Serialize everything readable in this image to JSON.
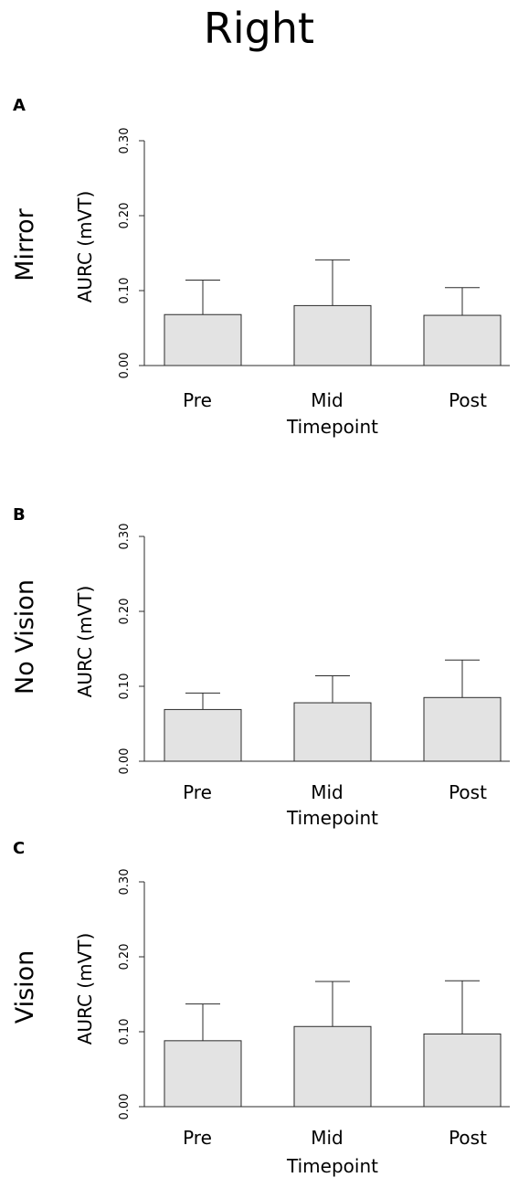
{
  "figure": {
    "title": "Right"
  },
  "chart_data": [
    {
      "type": "bar",
      "panel_label": "A",
      "row_label": "Mirror",
      "categories": [
        "Pre",
        "Mid",
        "Post"
      ],
      "values": [
        0.068,
        0.08,
        0.067
      ],
      "error_upper": [
        0.114,
        0.141,
        0.104
      ],
      "xlabel": "Timepoint",
      "ylabel": "AURC (mVT)",
      "ylim": [
        0,
        0.3
      ],
      "yticks": [
        "0.00",
        "0.10",
        "0.20",
        "0.30"
      ],
      "colors": {
        "bar_fill": "#e3e3e3",
        "stroke": "#2b2b2b"
      }
    },
    {
      "type": "bar",
      "panel_label": "B",
      "row_label": "No Vision",
      "categories": [
        "Pre",
        "Mid",
        "Post"
      ],
      "values": [
        0.069,
        0.078,
        0.085
      ],
      "error_upper": [
        0.091,
        0.114,
        0.135
      ],
      "xlabel": "Timepoint",
      "ylabel": "AURC (mVT)",
      "ylim": [
        0,
        0.3
      ],
      "yticks": [
        "0.00",
        "0.10",
        "0.20",
        "0.30"
      ],
      "colors": {
        "bar_fill": "#e3e3e3",
        "stroke": "#2b2b2b"
      }
    },
    {
      "type": "bar",
      "panel_label": "C",
      "row_label": "Vision",
      "categories": [
        "Pre",
        "Mid",
        "Post"
      ],
      "values": [
        0.088,
        0.107,
        0.097
      ],
      "error_upper": [
        0.137,
        0.167,
        0.168
      ],
      "xlabel": "Timepoint",
      "ylabel": "AURC (mVT)",
      "ylim": [
        0,
        0.3
      ],
      "yticks": [
        "0.00",
        "0.10",
        "0.20",
        "0.30"
      ],
      "colors": {
        "bar_fill": "#e3e3e3",
        "stroke": "#2b2b2b"
      }
    }
  ]
}
